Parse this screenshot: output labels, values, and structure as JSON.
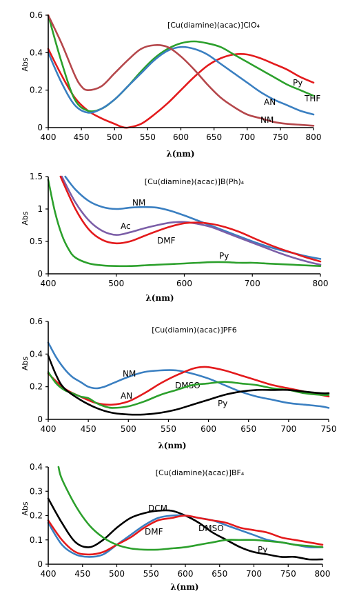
{
  "chart_data": [
    {
      "type": "line",
      "title": "[Cu(diamine)(acac)]ClO₄",
      "xlabel": "λ(nm)",
      "ylabel": "Abs",
      "xlim": [
        400,
        800
      ],
      "ylim": [
        0,
        0.6
      ],
      "xticks": [
        "400",
        "450",
        "500",
        "550",
        "600",
        "650",
        "700",
        "750",
        "800"
      ],
      "yticks": [
        "0",
        "0.2",
        "0.4",
        "0.6"
      ],
      "grid": false,
      "series": [
        {
          "name": "Py",
          "color": "#e31a1c",
          "x": [
            400,
            420,
            440,
            460,
            480,
            500,
            510,
            520,
            540,
            560,
            580,
            600,
            620,
            640,
            660,
            680,
            700,
            720,
            740,
            760,
            780,
            800
          ],
          "y": [
            0.42,
            0.28,
            0.16,
            0.09,
            0.05,
            0.02,
            0.005,
            0.0,
            0.02,
            0.07,
            0.13,
            0.2,
            0.27,
            0.33,
            0.37,
            0.39,
            0.39,
            0.37,
            0.34,
            0.31,
            0.27,
            0.24
          ]
        },
        {
          "name": "THF",
          "color": "#2ca02c",
          "x": [
            400,
            420,
            440,
            460,
            480,
            500,
            520,
            540,
            560,
            580,
            600,
            620,
            640,
            660,
            680,
            700,
            720,
            740,
            760,
            780,
            800
          ],
          "y": [
            0.6,
            0.35,
            0.15,
            0.09,
            0.1,
            0.15,
            0.22,
            0.3,
            0.37,
            0.42,
            0.45,
            0.46,
            0.45,
            0.43,
            0.39,
            0.35,
            0.31,
            0.27,
            0.23,
            0.2,
            0.17
          ]
        },
        {
          "name": "AN",
          "color": "#3a7fc1",
          "x": [
            400,
            420,
            440,
            460,
            480,
            500,
            520,
            540,
            560,
            580,
            600,
            620,
            640,
            660,
            680,
            700,
            720,
            740,
            760,
            780,
            800
          ],
          "y": [
            0.4,
            0.24,
            0.12,
            0.08,
            0.1,
            0.15,
            0.22,
            0.29,
            0.36,
            0.41,
            0.43,
            0.42,
            0.39,
            0.34,
            0.29,
            0.24,
            0.19,
            0.15,
            0.12,
            0.09,
            0.07
          ]
        },
        {
          "name": "NM",
          "color": "#b5474b",
          "x": [
            400,
            420,
            440,
            450,
            460,
            480,
            500,
            520,
            540,
            560,
            580,
            600,
            620,
            640,
            660,
            680,
            700,
            720,
            740,
            760,
            780,
            800
          ],
          "y": [
            0.6,
            0.45,
            0.28,
            0.22,
            0.2,
            0.22,
            0.29,
            0.36,
            0.42,
            0.44,
            0.43,
            0.38,
            0.31,
            0.23,
            0.16,
            0.11,
            0.07,
            0.05,
            0.03,
            0.02,
            0.015,
            0.01
          ]
        }
      ]
    },
    {
      "type": "line",
      "title": "[Cu(diamine)(acac)]B(Ph)₄",
      "xlabel": "λ(nm)",
      "ylabel": "Abs",
      "xlim": [
        400,
        800
      ],
      "ylim": [
        0,
        1.5
      ],
      "xticks": [
        "400",
        "500",
        "600",
        "700",
        "800"
      ],
      "yticks": [
        "0",
        "0.5",
        "1",
        "1.5"
      ],
      "grid": false,
      "series": [
        {
          "name": "NM",
          "color": "#3a7fc1",
          "x": [
            425,
            440,
            460,
            480,
            500,
            520,
            540,
            560,
            580,
            600,
            620,
            640,
            660,
            680,
            700,
            720,
            740,
            760,
            780,
            800
          ],
          "y": [
            1.5,
            1.3,
            1.12,
            1.03,
            1.0,
            1.02,
            1.03,
            1.02,
            0.97,
            0.9,
            0.82,
            0.74,
            0.66,
            0.58,
            0.5,
            0.43,
            0.37,
            0.32,
            0.27,
            0.23
          ]
        },
        {
          "name": "Ac",
          "color": "#7b5ea7",
          "x": [
            420,
            440,
            460,
            480,
            500,
            520,
            540,
            560,
            580,
            600,
            620,
            640,
            660,
            680,
            700,
            720,
            740,
            760,
            780,
            800
          ],
          "y": [
            1.5,
            1.1,
            0.82,
            0.66,
            0.6,
            0.64,
            0.7,
            0.75,
            0.79,
            0.8,
            0.77,
            0.72,
            0.64,
            0.56,
            0.48,
            0.4,
            0.32,
            0.25,
            0.19,
            0.14
          ]
        },
        {
          "name": "DMF",
          "color": "#e31a1c",
          "x": [
            418,
            440,
            460,
            480,
            500,
            520,
            540,
            560,
            580,
            600,
            620,
            640,
            660,
            680,
            700,
            720,
            740,
            760,
            780,
            800
          ],
          "y": [
            1.5,
            1.0,
            0.68,
            0.52,
            0.47,
            0.5,
            0.58,
            0.66,
            0.73,
            0.78,
            0.79,
            0.77,
            0.72,
            0.65,
            0.56,
            0.47,
            0.39,
            0.32,
            0.25,
            0.19
          ]
        },
        {
          "name": "Py",
          "color": "#2ca02c",
          "x": [
            400,
            410,
            420,
            430,
            440,
            460,
            480,
            500,
            520,
            540,
            560,
            580,
            600,
            620,
            640,
            660,
            680,
            700,
            720,
            740,
            760,
            780,
            800
          ],
          "y": [
            1.45,
            0.95,
            0.6,
            0.38,
            0.25,
            0.16,
            0.13,
            0.12,
            0.12,
            0.13,
            0.14,
            0.15,
            0.16,
            0.17,
            0.18,
            0.18,
            0.17,
            0.17,
            0.16,
            0.15,
            0.14,
            0.13,
            0.12
          ]
        }
      ]
    },
    {
      "type": "line",
      "title": "[Cu(diamin)(acac)]PF6",
      "xlabel": "λ(nm)",
      "ylabel": "Abs",
      "xlim": [
        400,
        750
      ],
      "ylim": [
        0,
        0.6
      ],
      "xticks": [
        "400",
        "450",
        "500",
        "550",
        "600",
        "650",
        "700",
        "750"
      ],
      "yticks": [
        "0",
        "0.2",
        "0.4",
        "0.6"
      ],
      "grid": false,
      "series": [
        {
          "name": "NM",
          "color": "#3a7fc1",
          "x": [
            400,
            410,
            420,
            430,
            440,
            450,
            460,
            470,
            480,
            500,
            520,
            540,
            560,
            580,
            600,
            620,
            640,
            660,
            680,
            700,
            720,
            740,
            750
          ],
          "y": [
            0.47,
            0.38,
            0.31,
            0.26,
            0.23,
            0.2,
            0.19,
            0.2,
            0.22,
            0.26,
            0.29,
            0.3,
            0.3,
            0.28,
            0.25,
            0.21,
            0.17,
            0.14,
            0.12,
            0.1,
            0.09,
            0.08,
            0.07
          ]
        },
        {
          "name": "DMSO",
          "color": "#e31a1c",
          "x": [
            400,
            420,
            440,
            460,
            480,
            500,
            520,
            540,
            560,
            580,
            590,
            600,
            620,
            640,
            660,
            680,
            700,
            720,
            740,
            750
          ],
          "y": [
            0.28,
            0.19,
            0.14,
            0.1,
            0.09,
            0.11,
            0.16,
            0.22,
            0.27,
            0.31,
            0.32,
            0.32,
            0.3,
            0.27,
            0.24,
            0.21,
            0.19,
            0.17,
            0.15,
            0.14
          ]
        },
        {
          "name": "AN",
          "color": "#2ca02c",
          "x": [
            400,
            410,
            420,
            430,
            440,
            450,
            460,
            470,
            480,
            500,
            520,
            540,
            560,
            580,
            600,
            620,
            640,
            660,
            680,
            700,
            720,
            740,
            750
          ],
          "y": [
            0.29,
            0.22,
            0.18,
            0.16,
            0.14,
            0.13,
            0.1,
            0.08,
            0.07,
            0.08,
            0.11,
            0.15,
            0.18,
            0.21,
            0.22,
            0.23,
            0.22,
            0.21,
            0.19,
            0.18,
            0.16,
            0.15,
            0.15
          ]
        },
        {
          "name": "Py",
          "color": "#000000",
          "x": [
            400,
            410,
            420,
            440,
            460,
            480,
            500,
            520,
            540,
            560,
            580,
            600,
            620,
            640,
            660,
            680,
            700,
            720,
            740,
            750
          ],
          "y": [
            0.39,
            0.27,
            0.19,
            0.12,
            0.07,
            0.04,
            0.03,
            0.03,
            0.04,
            0.06,
            0.09,
            0.12,
            0.15,
            0.17,
            0.18,
            0.18,
            0.18,
            0.17,
            0.16,
            0.16
          ]
        }
      ]
    },
    {
      "type": "line",
      "title": "[Cu(diamine)(acac)]BF₄",
      "xlabel": "λ(nm)",
      "ylabel": "Abs",
      "xlim": [
        400,
        800
      ],
      "ylim": [
        0,
        0.4
      ],
      "xticks": [
        "400",
        "450",
        "500",
        "550",
        "600",
        "650",
        "700",
        "750",
        "800"
      ],
      "yticks": [
        "0",
        "0.1",
        "0.2",
        "0.3",
        "0.4"
      ],
      "grid": false,
      "series": [
        {
          "name": "DCM",
          "color": "#000000",
          "x": [
            400,
            420,
            440,
            460,
            480,
            500,
            520,
            540,
            560,
            580,
            600,
            620,
            640,
            660,
            680,
            700,
            720,
            740,
            760,
            780,
            800
          ],
          "y": [
            0.27,
            0.17,
            0.09,
            0.07,
            0.1,
            0.15,
            0.19,
            0.21,
            0.22,
            0.22,
            0.2,
            0.17,
            0.13,
            0.1,
            0.07,
            0.05,
            0.04,
            0.03,
            0.03,
            0.02,
            0.02
          ]
        },
        {
          "name": "DMF",
          "color": "#3a7fc1",
          "x": [
            400,
            420,
            440,
            460,
            480,
            500,
            520,
            540,
            560,
            580,
            600,
            620,
            640,
            660,
            680,
            700,
            720,
            740,
            760,
            780,
            800
          ],
          "y": [
            0.17,
            0.08,
            0.04,
            0.03,
            0.04,
            0.08,
            0.12,
            0.16,
            0.19,
            0.2,
            0.2,
            0.19,
            0.18,
            0.16,
            0.14,
            0.12,
            0.1,
            0.09,
            0.08,
            0.07,
            0.07
          ]
        },
        {
          "name": "DMSO",
          "color": "#e31a1c",
          "x": [
            400,
            420,
            440,
            460,
            480,
            500,
            520,
            540,
            560,
            580,
            600,
            620,
            640,
            660,
            680,
            700,
            720,
            740,
            760,
            780,
            800
          ],
          "y": [
            0.18,
            0.1,
            0.05,
            0.04,
            0.05,
            0.08,
            0.11,
            0.15,
            0.18,
            0.19,
            0.2,
            0.19,
            0.18,
            0.17,
            0.15,
            0.14,
            0.13,
            0.11,
            0.1,
            0.09,
            0.08
          ]
        },
        {
          "name": "Py",
          "color": "#2ca02c",
          "x": [
            415,
            420,
            440,
            460,
            480,
            500,
            520,
            540,
            560,
            580,
            600,
            620,
            640,
            660,
            680,
            700,
            720,
            740,
            760,
            780,
            800
          ],
          "y": [
            0.4,
            0.35,
            0.24,
            0.16,
            0.11,
            0.08,
            0.065,
            0.06,
            0.06,
            0.065,
            0.07,
            0.08,
            0.09,
            0.1,
            0.1,
            0.1,
            0.095,
            0.09,
            0.08,
            0.075,
            0.07
          ]
        }
      ]
    }
  ]
}
